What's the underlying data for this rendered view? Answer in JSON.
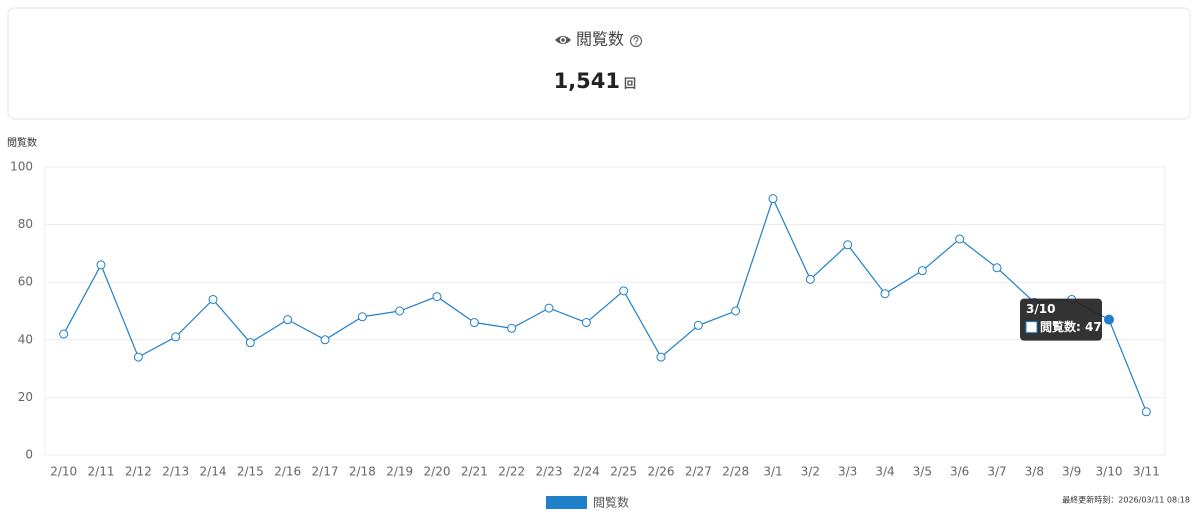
{
  "header": {
    "title": "閲覧数",
    "total": "1,541",
    "unit": "回"
  },
  "chart_data": {
    "type": "line",
    "y_label": "閲覧数",
    "categories": [
      "2/10",
      "2/11",
      "2/12",
      "2/13",
      "2/14",
      "2/15",
      "2/16",
      "2/17",
      "2/18",
      "2/19",
      "2/20",
      "2/21",
      "2/22",
      "2/23",
      "2/24",
      "2/25",
      "2/26",
      "2/27",
      "2/28",
      "3/1",
      "3/2",
      "3/3",
      "3/4",
      "3/5",
      "3/6",
      "3/7",
      "3/8",
      "3/9",
      "3/10",
      "3/11"
    ],
    "series": [
      {
        "name": "閲覧数",
        "color": "#1f7fc8",
        "values": [
          42,
          66,
          34,
          41,
          54,
          39,
          47,
          40,
          48,
          50,
          55,
          46,
          44,
          51,
          46,
          57,
          34,
          45,
          50,
          89,
          61,
          73,
          56,
          64,
          75,
          65,
          53,
          54,
          47,
          15
        ]
      }
    ],
    "ylim": [
      0,
      100
    ],
    "yticks": [
      0,
      20,
      40,
      60,
      80,
      100
    ],
    "grid": true,
    "legend": "bottom",
    "tooltip": {
      "title": "3/10",
      "text": "閲覧数: 47"
    }
  },
  "footer": {
    "updated": "最終更新時刻：2026/03/11 08:18"
  }
}
